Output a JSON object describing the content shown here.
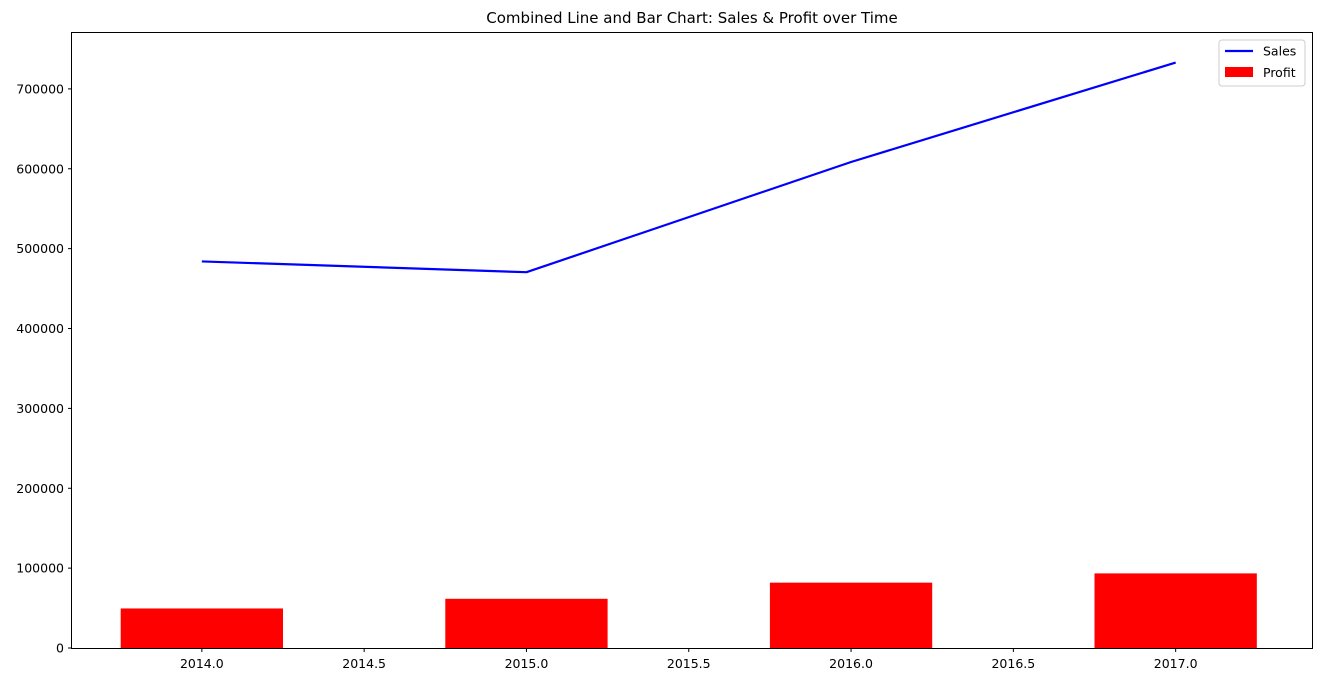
{
  "chart_data": {
    "type": "bar",
    "title": "Combined Line and Bar Chart: Sales & Profit over Time",
    "xlabel": "",
    "ylabel": "",
    "x": [
      2014,
      2015,
      2016,
      2017
    ],
    "xlim": [
      2013.6,
      2017.42
    ],
    "ylim": [
      0,
      770000
    ],
    "x_ticks": [
      2014.0,
      2014.5,
      2015.0,
      2015.5,
      2016.0,
      2016.5,
      2017.0
    ],
    "x_tick_labels": [
      "2014.0",
      "2014.5",
      "2015.0",
      "2015.5",
      "2016.0",
      "2016.5",
      "2017.0"
    ],
    "y_ticks": [
      0,
      100000,
      200000,
      300000,
      400000,
      500000,
      600000,
      700000
    ],
    "y_tick_labels": [
      "0",
      "100000",
      "200000",
      "300000",
      "400000",
      "500000",
      "600000",
      "700000"
    ],
    "grid": false,
    "legend_position": "top-right",
    "series": [
      {
        "name": "Sales",
        "kind": "line",
        "color": "#0000ff",
        "values": [
          484000,
          470500,
          608500,
          733000
        ]
      },
      {
        "name": "Profit",
        "kind": "bar",
        "color": "#ff0000",
        "bar_width": 0.5,
        "values": [
          49500,
          61600,
          81800,
          93400
        ]
      }
    ]
  }
}
